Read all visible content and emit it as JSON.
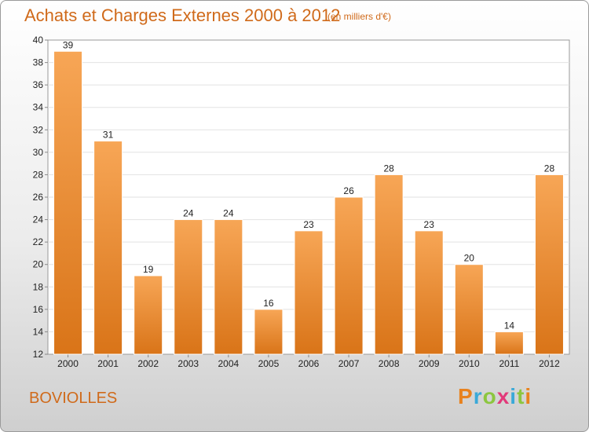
{
  "header": {
    "title": "Achats et Charges Externes 2000 à 2012",
    "subtitle": "(en milliers d'€)"
  },
  "footer": {
    "commune": "BOVIOLLES",
    "logo": "Proxiti"
  },
  "colors": {
    "bar_top": "#f7a656",
    "bar_bottom": "#d97418",
    "accent": "#d06a1a"
  },
  "chart_data": {
    "type": "bar",
    "title": "Achats et Charges Externes 2000 à 2012",
    "subtitle": "(en milliers d'€)",
    "categories": [
      "2000",
      "2001",
      "2002",
      "2003",
      "2004",
      "2005",
      "2006",
      "2007",
      "2008",
      "2009",
      "2010",
      "2011",
      "2012"
    ],
    "values": [
      39,
      31,
      19,
      24,
      24,
      16,
      23,
      26,
      28,
      23,
      20,
      14,
      28
    ],
    "ylim": [
      12,
      40
    ],
    "yticks": [
      12,
      14,
      16,
      18,
      20,
      22,
      24,
      26,
      28,
      30,
      32,
      34,
      36,
      38,
      40
    ],
    "grid": true,
    "xlabel": "",
    "ylabel": ""
  }
}
